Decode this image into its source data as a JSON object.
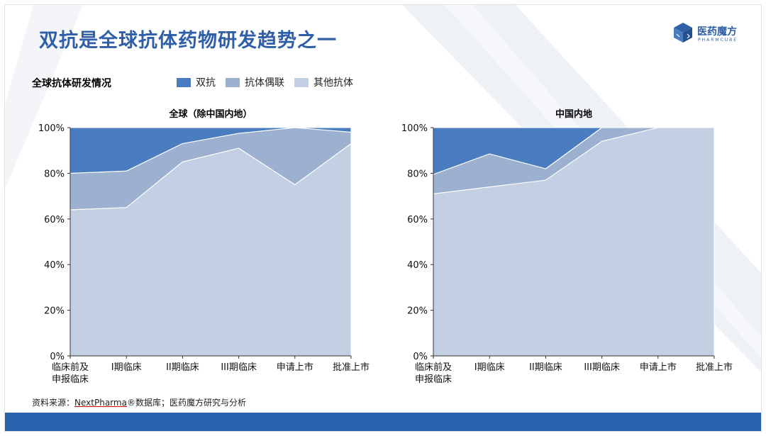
{
  "title": "双抗是全球抗体药物研发趋势之一",
  "logo": {
    "name": "医药魔方",
    "subtitle": "PHARMCUBE"
  },
  "section_label": "全球抗体研发情况",
  "legend": [
    {
      "label": "双抗",
      "color": "#4a7dbf"
    },
    {
      "label": "抗体偶联",
      "color": "#9cb1d0"
    },
    {
      "label": "其他抗体",
      "color": "#c3cfe2"
    }
  ],
  "source": {
    "prefix": "资料来源：",
    "db": "NextPharma",
    "suffix": "®数据库；医药魔方研究与分析"
  },
  "chart_data": [
    {
      "type": "area",
      "stacked": true,
      "title": "全球（除中国内地）",
      "categories": [
        [
          "临床前及",
          "申报临床"
        ],
        [
          "I期临床"
        ],
        [
          "II期临床"
        ],
        [
          "III期临床"
        ],
        [
          "申请上市"
        ],
        [
          "批准上市"
        ]
      ],
      "ylim": [
        0,
        100
      ],
      "yticks": [
        "0%",
        "20%",
        "40%",
        "60%",
        "80%",
        "100%"
      ],
      "series": [
        {
          "name": "其他抗体",
          "color": "#c3cfe2",
          "values": [
            64,
            65,
            85,
            91,
            75,
            93
          ]
        },
        {
          "name": "抗体偶联",
          "color": "#9cb1d0",
          "values": [
            16,
            16,
            8,
            6.5,
            25,
            5
          ]
        },
        {
          "name": "双抗",
          "color": "#4a7dbf",
          "values": [
            20,
            19,
            7,
            2.5,
            0,
            2
          ]
        }
      ]
    },
    {
      "type": "area",
      "stacked": true,
      "title": "中国内地",
      "categories": [
        [
          "临床前及",
          "申报临床"
        ],
        [
          "I期临床"
        ],
        [
          "II期临床"
        ],
        [
          "III期临床"
        ],
        [
          "申请上市"
        ],
        [
          "批准上市"
        ]
      ],
      "ylim": [
        0,
        100
      ],
      "yticks": [
        "0%",
        "20%",
        "40%",
        "60%",
        "80%",
        "100%"
      ],
      "series": [
        {
          "name": "其他抗体",
          "color": "#c3cfe2",
          "values": [
            71,
            74,
            77,
            94,
            100,
            100
          ]
        },
        {
          "name": "抗体偶联",
          "color": "#9cb1d0",
          "values": [
            8.5,
            14.5,
            5,
            6,
            0,
            0
          ]
        },
        {
          "name": "双抗",
          "color": "#4a7dbf",
          "values": [
            20.5,
            11.5,
            18,
            0,
            0,
            0
          ]
        }
      ]
    }
  ]
}
